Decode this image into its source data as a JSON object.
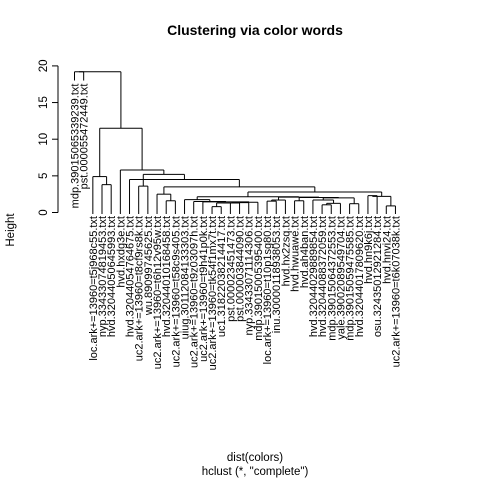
{
  "chart_data": {
    "type": "dendrogram",
    "title": "Clustering via color words",
    "xlabel": "dist(colors)",
    "ylabel": "Height",
    "sub": "hclust (*, \"complete\")",
    "ylim": [
      0,
      20
    ],
    "yticks": [
      0,
      5,
      10,
      15,
      20
    ],
    "leaves": [
      "mdp.39015065339239.txt",
      "pst.000055472449.txt",
      "loc.ark+=13960=t5j968c55.txt",
      "nyp.33433074819453.txt",
      "hvd.32044050645993.txt",
      "hvd.hxdg3e.txt",
      "hvd.32044054764675.txt",
      "uc2.ark+=13960=t8cf9rs8k.txt",
      "wu.89099745625.txt",
      "uc2.ark+=13960=t6h12v95w.txt",
      "hvd.32044010168458.txt",
      "uc2.ark+=13960=t58c9s405.txt",
      "uiug.30112084133303.txt",
      "uc2.ark+=13960=t9z03097h.txt",
      "uc2.ark+=13960=t9h41p0k.txt",
      "uc2.ark+=13960=tk54f1mx7t.txt",
      "uc1.31822038214417.txt",
      "pst.000023451473.txt",
      "pst.000003844090.txt",
      "nyp.33433071114306.txt",
      "mdp.39015005395400.txt",
      "loc.ark+=13960=t10p1sg80.txt",
      "inu.30000118938053.txt",
      "hvd.hx2zsq.txt",
      "hvd.hwuawe.txt",
      "hvd.ah4ban.txt",
      "hvd.32044029889854.txt",
      "hvd.32044088372059.txt",
      "mdp.39015064372553.txt",
      "yale.39002089549704.txt",
      "mdp.39015059475585.txt",
      "hvd.32044017809620.txt",
      "hvd.hn9k6j.txt",
      "osu.32435012921284.txt",
      "hvd.hnvi24.txt",
      "uc2.ark+=13960=t6k07038k.txt"
    ],
    "merges": [
      {
        "h": 0.8,
        "a": "L15",
        "b": "L16"
      },
      {
        "h": 1.05,
        "a": "L27",
        "b": "L28"
      },
      {
        "h": 0.9,
        "a": "L34",
        "b": "L35"
      },
      {
        "h": 1.6,
        "a": "L10",
        "b": "L11"
      },
      {
        "h": 1.25,
        "a": "M1",
        "b": "L29"
      },
      {
        "h": 1.3,
        "a": "M0",
        "b": "L17"
      },
      {
        "h": 1.2,
        "a": "L30",
        "b": "L31"
      },
      {
        "h": 1.55,
        "a": "L21",
        "b": "L22"
      },
      {
        "h": 1.7,
        "a": "M7",
        "b": "L23"
      },
      {
        "h": 1.3,
        "a": "M5",
        "b": "L18"
      },
      {
        "h": 1.35,
        "a": "M9",
        "b": "L19"
      },
      {
        "h": 1.4,
        "a": "M10",
        "b": "L20"
      },
      {
        "h": 1.45,
        "a": "L14",
        "b": "M11"
      },
      {
        "h": 1.5,
        "a": "L13",
        "b": "M12"
      },
      {
        "h": 1.75,
        "a": "L12",
        "b": "M13"
      },
      {
        "h": 1.6,
        "a": "L24",
        "b": "L25"
      },
      {
        "h": 1.7,
        "a": "L26",
        "b": "M4"
      },
      {
        "h": 2.0,
        "a": "M16",
        "b": "M6"
      },
      {
        "h": 2.05,
        "a": "M15",
        "b": "M17"
      },
      {
        "h": 2.1,
        "a": "M8",
        "b": "M18"
      },
      {
        "h": 2.3,
        "a": "L32",
        "b": "L33"
      },
      {
        "h": 2.15,
        "a": "M14",
        "b": "M19"
      },
      {
        "h": 2.2,
        "a": "M20",
        "b": "M2"
      },
      {
        "h": 2.5,
        "a": "L9",
        "b": "M3"
      },
      {
        "h": 2.8,
        "a": "M21",
        "b": "M22"
      },
      {
        "h": 3.6,
        "a": "L7",
        "b": "L8"
      },
      {
        "h": 3.5,
        "a": "M23",
        "b": "M24"
      },
      {
        "h": 3.8,
        "a": "L3",
        "b": "L4"
      },
      {
        "h": 4.5,
        "a": "M26",
        "b": "L6"
      },
      {
        "h": 4.9,
        "a": "L2",
        "b": "M27"
      },
      {
        "h": 5.2,
        "a": "M25",
        "b": "M28"
      },
      {
        "h": 5.8,
        "a": "L5",
        "b": "M30"
      },
      {
        "h": 11.5,
        "a": "M29",
        "b": "M31"
      },
      {
        "h": 19.2,
        "a": "L0",
        "b": "L1"
      },
      {
        "h": 19.2,
        "a": "M33",
        "b": "M32"
      }
    ],
    "leaf_heights": {
      "L0": 18.0,
      "L1": 18.0
    }
  }
}
